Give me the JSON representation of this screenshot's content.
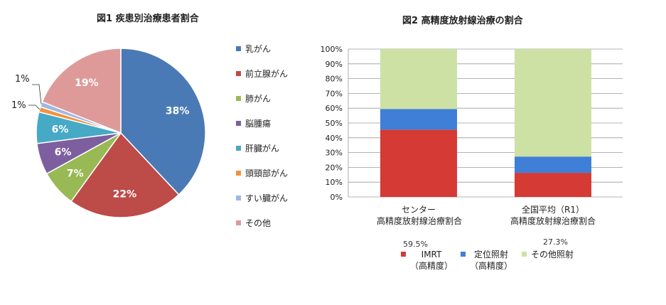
{
  "figure1": {
    "title": "図1  疾患別治療患者割合",
    "chart_data": {
      "type": "pie",
      "title": "図1  疾患別治療患者割合",
      "slices": [
        {
          "label": "乳がん",
          "value": 38,
          "value_label": "38%",
          "color": "#4a7ab5"
        },
        {
          "label": "前立腺がん",
          "value": 22,
          "value_label": "22%",
          "color": "#bd4b48"
        },
        {
          "label": "肺がん",
          "value": 7,
          "value_label": "7%",
          "color": "#98b954"
        },
        {
          "label": "脳腫瘍",
          "value": 6,
          "value_label": "6%",
          "color": "#7d5fa0"
        },
        {
          "label": "肝臓がん",
          "value": 6,
          "value_label": "6%",
          "color": "#46a9c6"
        },
        {
          "label": "頭頸部がん",
          "value": 1,
          "value_label": "1%",
          "color": "#f49140"
        },
        {
          "label": "すい臓がん",
          "value": 1,
          "value_label": "1%",
          "color": "#9db8e2"
        },
        {
          "label": "その他",
          "value": 19,
          "value_label": "19%",
          "color": "#de9a99"
        }
      ],
      "legend_position": "right"
    }
  },
  "figure2": {
    "title": "図2  高精度放射線治療の割合",
    "note_center": "59.5%",
    "note_national": "27.3%",
    "chart_data": {
      "type": "bar",
      "stacked": true,
      "title": "図2  高精度放射線治療の割合",
      "categories": [
        [
          "センター",
          "高精度放射線治療割合"
        ],
        [
          "全国平均（R1）",
          "高精度放射線治療割合"
        ]
      ],
      "series": [
        {
          "name": "IMRT（高精度）",
          "values": [
            45.5,
            16.3
          ],
          "color": "#d53a34"
        },
        {
          "name": "定位照射（高精度）",
          "values": [
            14.0,
            11.0
          ],
          "color": "#3f7fd8"
        },
        {
          "name": "その他照射",
          "values": [
            40.5,
            72.7
          ],
          "color": "#cde1a5"
        }
      ],
      "ylim": [
        0,
        100
      ],
      "yticks": [
        "0%",
        "10%",
        "20%",
        "30%",
        "40%",
        "50%",
        "60%",
        "70%",
        "80%",
        "90%",
        "100%"
      ],
      "grid": true,
      "legend_position": "bottom",
      "legend": [
        {
          "line1": "IMRT",
          "line2": "（高精度）"
        },
        {
          "line1": "定位照射",
          "line2": "（高精度）"
        },
        {
          "line1": "その他照射",
          "line2": ""
        }
      ]
    }
  }
}
